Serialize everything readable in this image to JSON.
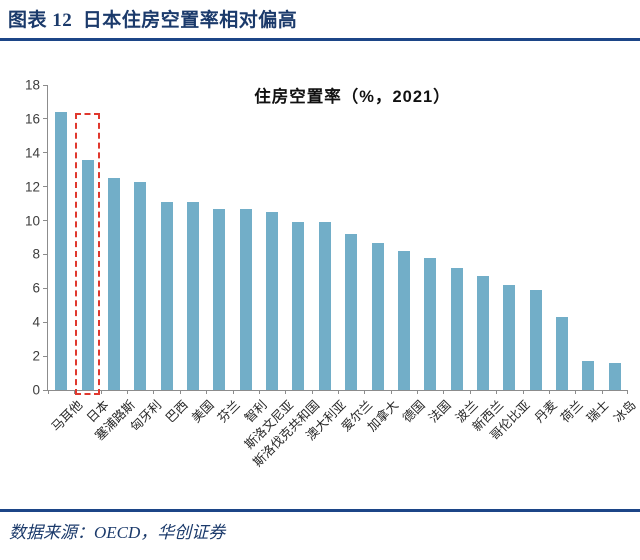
{
  "header": {
    "title": "图表 12  日本住房空置率相对偏高"
  },
  "chart_data": {
    "type": "bar",
    "title": "住房空置率（%，2021）",
    "categories": [
      "马耳他",
      "日本",
      "塞浦路斯",
      "匈牙利",
      "巴西",
      "美国",
      "芬兰",
      "智利",
      "斯洛文尼亚",
      "斯洛伐克共和国",
      "澳大利亚",
      "爱尔兰",
      "加拿大",
      "德国",
      "法国",
      "波兰",
      "新西兰",
      "哥伦比亚",
      "丹麦",
      "荷兰",
      "瑞士",
      "冰岛"
    ],
    "values": [
      16.4,
      13.6,
      12.5,
      12.3,
      11.1,
      11.1,
      10.7,
      10.7,
      10.5,
      9.9,
      9.9,
      9.2,
      8.7,
      8.2,
      7.8,
      7.2,
      6.7,
      6.2,
      5.9,
      4.3,
      1.7,
      1.6
    ],
    "ylim": [
      0,
      18
    ],
    "yticks": [
      0,
      2,
      4,
      6,
      8,
      10,
      12,
      14,
      16,
      18
    ],
    "grid": false,
    "legend": "none",
    "bar_color": "#72AEC8",
    "highlight": {
      "category": "日本",
      "index": 1,
      "box_color": "#E0382E",
      "box_style": "dashed",
      "box_top_value": 16.35
    }
  },
  "footer": {
    "source": "数据来源：OECD，华创证券"
  },
  "colors": {
    "title_navy": "#1B3A6B",
    "rule_navy": "#1C4587",
    "axis_gray": "#8C8C8C",
    "bar_blue": "#72AEC8",
    "highlight_red": "#E0382E"
  }
}
